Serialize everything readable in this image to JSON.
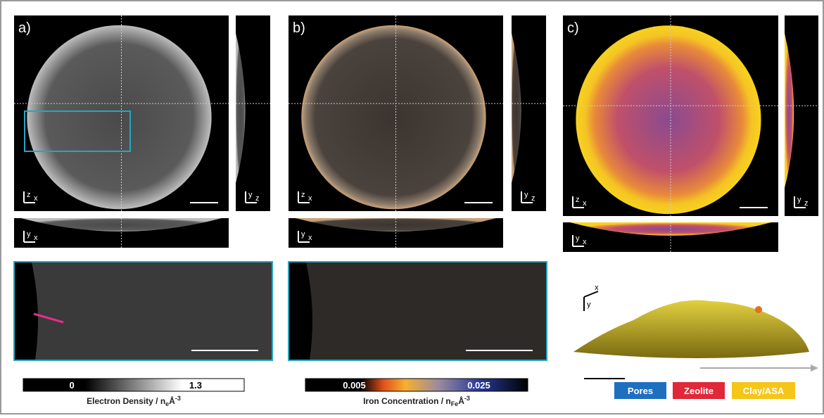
{
  "panels": [
    {
      "label": "a)",
      "main_axes": [
        "z",
        "x"
      ],
      "side_axes": [
        "y",
        "z"
      ],
      "bottom_axes": [
        "y",
        "x"
      ]
    },
    {
      "label": "b)",
      "main_axes": [
        "z",
        "x"
      ],
      "side_axes": [
        "y",
        "z"
      ],
      "bottom_axes": [
        "y",
        "x"
      ]
    },
    {
      "label": "c)",
      "main_axes": [
        "z",
        "x"
      ],
      "side_axes": [
        "y",
        "z"
      ],
      "bottom_axes": [
        "y",
        "x"
      ]
    }
  ],
  "colorbars": [
    {
      "min": "0",
      "max": "1.3",
      "label": "Electron Density / n",
      "sub": "e",
      "unit": "Å",
      "sup": "-3"
    },
    {
      "min": "0.005",
      "max": "0.025",
      "label": "Iron Concentration /  n",
      "sub": "Fe",
      "unit": "Å",
      "sup": "-3"
    }
  ],
  "view3d_axes": [
    "y",
    "x"
  ],
  "legend": [
    "Pores",
    "Zeolite",
    "Clay/ASA"
  ]
}
